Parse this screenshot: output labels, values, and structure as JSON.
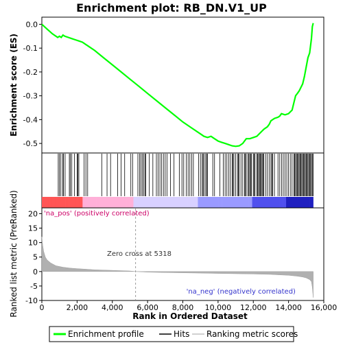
{
  "chart_data": {
    "type": "line",
    "title": "Enrichment plot: RB_DN.V1_UP",
    "xlabel": "Rank in Ordered Dataset",
    "top_panel": {
      "ylabel": "Enrichment score (ES)",
      "ylim": [
        -0.54,
        0.03
      ],
      "y_ticks": [
        "0.0",
        "-0.1",
        "-0.2",
        "-0.3",
        "-0.4",
        "-0.5"
      ],
      "y_tick_values": [
        0.0,
        -0.1,
        -0.2,
        -0.3,
        -0.4,
        -0.5
      ],
      "color": "#00ff00",
      "series_x": [
        0,
        300,
        600,
        900,
        1000,
        1100,
        1200,
        1300,
        1500,
        1700,
        1900,
        2100,
        2300,
        2500,
        3000,
        3500,
        4000,
        4500,
        5000,
        5500,
        6000,
        6500,
        7000,
        7500,
        8000,
        8500,
        9000,
        9200,
        9400,
        9600,
        9800,
        10000,
        10200,
        10400,
        10600,
        10800,
        11000,
        11200,
        11400,
        11500,
        11600,
        11800,
        12000,
        12200,
        12400,
        12600,
        12800,
        12900,
        13000,
        13200,
        13400,
        13500,
        13600,
        13800,
        14000,
        14200,
        14300,
        14400,
        14500,
        14600,
        14700,
        14800,
        14900,
        15000,
        15100,
        15200,
        15300,
        15350,
        15400
      ],
      "series_y": [
        0.0,
        -0.02,
        -0.04,
        -0.055,
        -0.05,
        -0.055,
        -0.045,
        -0.05,
        -0.055,
        -0.06,
        -0.065,
        -0.07,
        -0.075,
        -0.085,
        -0.11,
        -0.14,
        -0.17,
        -0.2,
        -0.23,
        -0.26,
        -0.29,
        -0.32,
        -0.35,
        -0.38,
        -0.41,
        -0.435,
        -0.46,
        -0.47,
        -0.475,
        -0.47,
        -0.48,
        -0.49,
        -0.495,
        -0.5,
        -0.505,
        -0.51,
        -0.512,
        -0.51,
        -0.5,
        -0.49,
        -0.48,
        -0.48,
        -0.475,
        -0.47,
        -0.455,
        -0.44,
        -0.43,
        -0.42,
        -0.405,
        -0.395,
        -0.39,
        -0.385,
        -0.375,
        -0.38,
        -0.375,
        -0.36,
        -0.33,
        -0.3,
        -0.29,
        -0.28,
        -0.265,
        -0.25,
        -0.22,
        -0.18,
        -0.14,
        -0.12,
        -0.06,
        -0.01,
        0.005
      ]
    },
    "hits_panel": {
      "hit_ranks": [
        930,
        1000,
        1080,
        1180,
        1230,
        1320,
        1560,
        1620,
        1700,
        1850,
        2000,
        2040,
        2100,
        2400,
        2500,
        2600,
        3400,
        3700,
        3900,
        4300,
        4500,
        4700,
        5050,
        5150,
        5450,
        5550,
        5620,
        5700,
        5780,
        5850,
        5900,
        6100,
        6300,
        6500,
        6600,
        6700,
        6800,
        6900,
        7000,
        7100,
        7300,
        7500,
        7800,
        7950,
        8050,
        8200,
        8300,
        8400,
        8500,
        8600,
        8900,
        9000,
        9100,
        9150,
        9200,
        9300,
        9350,
        9400,
        9700,
        9800,
        10100,
        10300,
        10400,
        10500,
        10600,
        10700,
        10800,
        10850,
        10900,
        11000,
        11100,
        11150,
        11200,
        11300,
        11400,
        11500,
        11550,
        11600,
        11700,
        11750,
        11800,
        11850,
        11900,
        12000,
        12050,
        12100,
        12200,
        12250,
        12300,
        12350,
        12400,
        12450,
        12500,
        12550,
        12600,
        12700,
        12800,
        12900,
        13000,
        13050,
        13100,
        13200,
        13400,
        13500,
        13600,
        13700,
        13800,
        13900,
        14000,
        14100,
        14200,
        14300,
        14350,
        14400,
        14450,
        14500,
        14550,
        14600,
        14650,
        14700,
        14750,
        14800,
        14850,
        14900,
        14950,
        15000,
        15050,
        15100,
        15150,
        15200,
        15250,
        15300,
        15350,
        15400
      ]
    },
    "metric_panel": {
      "ylabel": "Ranked list metric (PreRanked)",
      "ylim": [
        -10,
        22
      ],
      "y_ticks": [
        "20",
        "15",
        "10",
        "5",
        "0",
        "-5",
        "-10"
      ],
      "y_tick_values": [
        20,
        15,
        10,
        5,
        0,
        -5,
        -10
      ],
      "metric_x": [
        0,
        50,
        100,
        200,
        300,
        500,
        800,
        1200,
        1600,
        2000,
        2500,
        3000,
        4000,
        5000,
        5318,
        6000,
        7000,
        8000,
        9000,
        10000,
        11000,
        12000,
        13000,
        13500,
        14000,
        14500,
        14800,
        15000,
        15200,
        15300,
        15350,
        15400
      ],
      "metric_y": [
        12,
        9,
        7,
        5,
        4,
        3,
        2,
        1.5,
        1.2,
        1.0,
        0.8,
        0.6,
        0.4,
        0.2,
        0.0,
        -0.2,
        -0.35,
        -0.45,
        -0.55,
        -0.65,
        -0.75,
        -0.85,
        -1.0,
        -1.15,
        -1.3,
        -1.6,
        -1.9,
        -2.2,
        -2.8,
        -3.5,
        -5.5,
        -9
      ],
      "pos_label": "'na_pos' (positively correlated)",
      "neg_label": "'na_neg' (negatively correlated)",
      "zero_cross_label": "Zero cross at 5318",
      "zero_cross": 5318
    },
    "x_ticks": [
      "0",
      "2,000",
      "4,000",
      "6,000",
      "8,000",
      "10,000",
      "12,000",
      "14,000",
      "16,000"
    ],
    "x_tick_values": [
      0,
      2000,
      4000,
      6000,
      8000,
      10000,
      12000,
      14000,
      16000
    ],
    "xlim": [
      0,
      16000
    ],
    "n_genes": 15400,
    "legend": [
      {
        "label": "Enrichment profile",
        "color": "#00ff00"
      },
      {
        "label": "Hits",
        "color": "#000000"
      },
      {
        "label": "Ranking metric scores",
        "color": "#c0c0c0"
      }
    ]
  }
}
